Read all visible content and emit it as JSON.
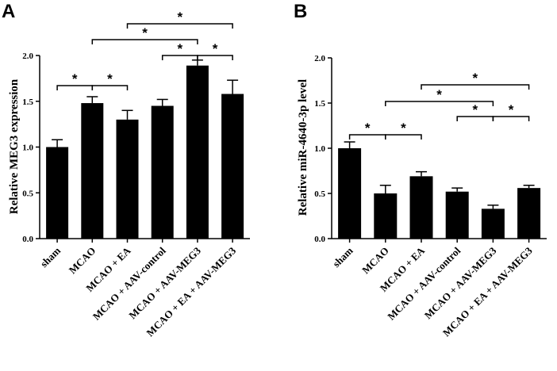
{
  "chart_data": [
    {
      "type": "bar",
      "panel_label": "A",
      "title": "",
      "xlabel": "",
      "ylabel": "Relative MEG3 expression",
      "ylim": [
        0,
        2.0
      ],
      "yticks": [
        "0.0",
        "0.5",
        "1.0",
        "1.5",
        "2.0"
      ],
      "categories": [
        "sham",
        "MCAO",
        "MCAO + EA",
        "MCAO + AAV-control",
        "MCAO + AAV-MEG3",
        "MCAO + EA + AAV-MEG3"
      ],
      "values": [
        1.0,
        1.48,
        1.3,
        1.45,
        1.89,
        1.58
      ],
      "errors": [
        0.08,
        0.07,
        0.1,
        0.07,
        0.06,
        0.15
      ],
      "significance": [
        {
          "from": 0,
          "to": 1,
          "label": "*"
        },
        {
          "from": 1,
          "to": 2,
          "label": "*"
        },
        {
          "from": 3,
          "to": 4,
          "label": "*"
        },
        {
          "from": 4,
          "to": 5,
          "label": "*"
        },
        {
          "from": 1,
          "to": 4,
          "label": "*"
        },
        {
          "from": 2,
          "to": 5,
          "label": "*"
        }
      ]
    },
    {
      "type": "bar",
      "panel_label": "B",
      "title": "",
      "xlabel": "",
      "ylabel": "Relative miR-4640-3p level",
      "ylim": [
        0,
        2.0
      ],
      "yticks": [
        "0.0",
        "0.5",
        "1.0",
        "1.5",
        "2.0"
      ],
      "categories": [
        "sham",
        "MCAO",
        "MCAO + EA",
        "MCAO + AAV-control",
        "MCAO + AAV-MEG3",
        "MCAO + EA + AAV-MEG3"
      ],
      "values": [
        1.0,
        0.5,
        0.69,
        0.52,
        0.33,
        0.56
      ],
      "errors": [
        0.07,
        0.09,
        0.05,
        0.04,
        0.04,
        0.03
      ],
      "significance": [
        {
          "from": 0,
          "to": 1,
          "label": "*"
        },
        {
          "from": 1,
          "to": 2,
          "label": "*"
        },
        {
          "from": 3,
          "to": 4,
          "label": "*"
        },
        {
          "from": 4,
          "to": 5,
          "label": "*"
        },
        {
          "from": 1,
          "to": 4,
          "label": "*"
        },
        {
          "from": 2,
          "to": 5,
          "label": "*"
        }
      ]
    }
  ]
}
